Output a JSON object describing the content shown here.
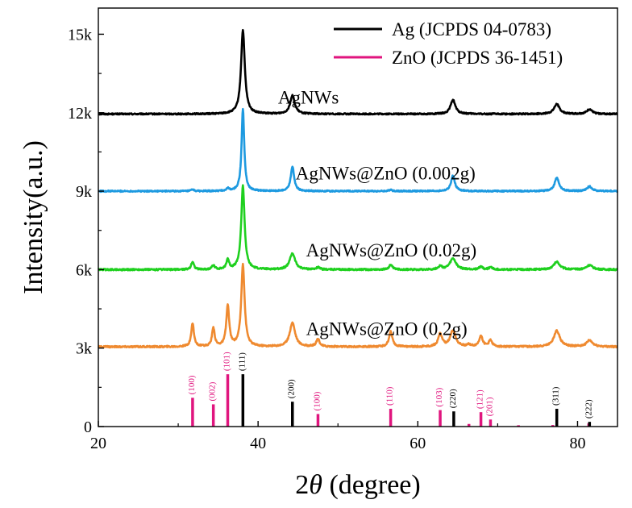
{
  "chart_data": {
    "type": "line",
    "xlabel_prefix": "2",
    "xlabel_theta": "θ",
    "xlabel_suffix": " (degree)",
    "ylabel": "Intensity(a.u.)",
    "xlim": [
      20,
      85
    ],
    "ylim": [
      0,
      16000
    ],
    "x_ticks": [
      20,
      40,
      60,
      80
    ],
    "x_tick_labels": [
      "20",
      "40",
      "60",
      "80"
    ],
    "y_ticks": [
      0,
      3000,
      6000,
      9000,
      12000,
      15000
    ],
    "y_tick_labels": [
      "0",
      "3k",
      "6k",
      "9k",
      "12k",
      "15k"
    ],
    "legend": [
      {
        "label": "Ag (JCPDS 04-0783)",
        "color": "#000000"
      },
      {
        "label": "ZnO (JCPDS 36-1451)",
        "color": "#e0157e"
      }
    ],
    "series": [
      {
        "name": "AgNWs",
        "label": "AgNWs",
        "color": "#000000",
        "baseline": 11950,
        "noise": 25,
        "label_pos": [
          42.5,
          12350
        ],
        "peaks": [
          [
            38.1,
            3200,
            0.28
          ],
          [
            44.3,
            700,
            0.35
          ],
          [
            64.4,
            550,
            0.35
          ],
          [
            77.4,
            380,
            0.4
          ],
          [
            81.5,
            180,
            0.4
          ]
        ]
      },
      {
        "name": "AgNWs@ZnO (0.002g)",
        "label": "AgNWs@ZnO (0.002g)",
        "color": "#1e9ae0",
        "baseline": 9000,
        "noise": 25,
        "label_pos": [
          44.7,
          9450
        ],
        "peaks": [
          [
            38.1,
            3150,
            0.2
          ],
          [
            44.3,
            950,
            0.25
          ],
          [
            64.4,
            600,
            0.28
          ],
          [
            77.4,
            520,
            0.32
          ],
          [
            81.5,
            180,
            0.35
          ],
          [
            36.2,
            100,
            0.2
          ],
          [
            31.8,
            60,
            0.2
          ],
          [
            56.6,
            60,
            0.2
          ]
        ]
      },
      {
        "name": "AgNWs@ZnO (0.02g)",
        "label": "AgNWs@ZnO (0.02g)",
        "color": "#1fd01f",
        "baseline": 6000,
        "noise": 30,
        "label_pos": [
          46.0,
          6500
        ],
        "peaks": [
          [
            38.1,
            3200,
            0.25
          ],
          [
            44.3,
            620,
            0.4
          ],
          [
            64.4,
            420,
            0.45
          ],
          [
            77.4,
            300,
            0.45
          ],
          [
            81.5,
            170,
            0.45
          ],
          [
            31.8,
            300,
            0.2
          ],
          [
            34.4,
            160,
            0.2
          ],
          [
            36.2,
            380,
            0.2
          ],
          [
            47.5,
            80,
            0.25
          ],
          [
            56.6,
            180,
            0.25
          ],
          [
            62.8,
            120,
            0.3
          ],
          [
            67.9,
            110,
            0.25
          ],
          [
            69.1,
            90,
            0.25
          ]
        ]
      },
      {
        "name": "AgNWs@ZnO (0.2g)",
        "label": "AgNWs@ZnO (0.2g)",
        "color": "#ef8a30",
        "baseline": 3050,
        "noise": 30,
        "label_pos": [
          46.0,
          3500
        ],
        "peaks": [
          [
            38.1,
            3150,
            0.25
          ],
          [
            44.3,
            920,
            0.4
          ],
          [
            64.4,
            620,
            0.4
          ],
          [
            77.4,
            620,
            0.45
          ],
          [
            81.5,
            240,
            0.45
          ],
          [
            31.8,
            900,
            0.2
          ],
          [
            34.4,
            700,
            0.2
          ],
          [
            36.2,
            1550,
            0.22
          ],
          [
            47.5,
            280,
            0.25
          ],
          [
            56.6,
            580,
            0.25
          ],
          [
            62.8,
            480,
            0.3
          ],
          [
            66.4,
            80,
            0.25
          ],
          [
            67.9,
            420,
            0.25
          ],
          [
            69.1,
            250,
            0.25
          ]
        ]
      }
    ],
    "reference_sticks": [
      {
        "x": 31.8,
        "h": 1100,
        "color": "#e0157e",
        "label": "(100)"
      },
      {
        "x": 34.4,
        "h": 850,
        "color": "#e0157e",
        "label": "(002)"
      },
      {
        "x": 36.2,
        "h": 2000,
        "color": "#e0157e",
        "label": "(101)"
      },
      {
        "x": 38.1,
        "h": 2000,
        "color": "#000000",
        "label": "(111)"
      },
      {
        "x": 44.3,
        "h": 950,
        "color": "#000000",
        "label": "(200)"
      },
      {
        "x": 47.5,
        "h": 480,
        "color": "#e0157e",
        "label": "(100)"
      },
      {
        "x": 56.6,
        "h": 680,
        "color": "#e0157e",
        "label": "(110)"
      },
      {
        "x": 62.8,
        "h": 630,
        "color": "#e0157e",
        "label": "(103)"
      },
      {
        "x": 64.5,
        "h": 580,
        "color": "#000000",
        "label": "(220)"
      },
      {
        "x": 66.4,
        "h": 100,
        "color": "#e0157e",
        "label": ""
      },
      {
        "x": 67.9,
        "h": 550,
        "color": "#e0157e",
        "label": "(121)"
      },
      {
        "x": 69.1,
        "h": 270,
        "color": "#e0157e",
        "label": "(201)"
      },
      {
        "x": 72.6,
        "h": 50,
        "color": "#e0157e",
        "label": ""
      },
      {
        "x": 76.9,
        "h": 60,
        "color": "#e0157e",
        "label": ""
      },
      {
        "x": 77.4,
        "h": 680,
        "color": "#000000",
        "label": "(311)"
      },
      {
        "x": 81.4,
        "h": 120,
        "color": "#e0157e",
        "label": ""
      },
      {
        "x": 81.5,
        "h": 180,
        "color": "#000000",
        "label": "(222)"
      }
    ]
  }
}
